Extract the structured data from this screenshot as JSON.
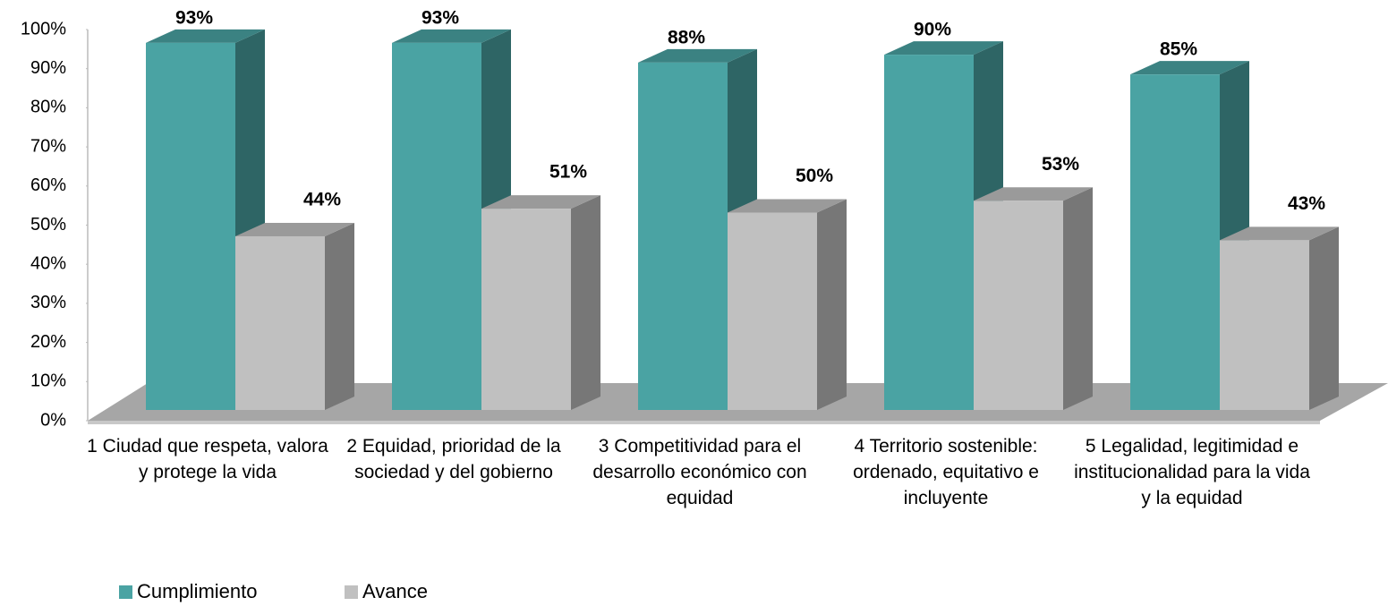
{
  "chart_data": {
    "type": "bar3d",
    "categories": [
      "1 Ciudad que respeta, valora y protege la vida",
      "2 Equidad, prioridad de la sociedad y del gobierno",
      "3 Competitividad para el desarrollo económico con equidad",
      "4 Territorio sostenible: ordenado, equitativo e incluyente",
      "5 Legalidad, legitimidad e institucionalidad para la vida y la equidad"
    ],
    "series": [
      {
        "name": "Cumplimiento",
        "color": "#4aa3a3",
        "values": [
          93,
          93,
          88,
          90,
          85
        ],
        "value_labels": [
          "93%",
          "93%",
          "88%",
          "90%",
          "85%"
        ]
      },
      {
        "name": "Avance",
        "color": "#c0c0c0",
        "values": [
          44,
          51,
          50,
          53,
          43
        ],
        "value_labels": [
          "44%",
          "51%",
          "50%",
          "53%",
          "43%"
        ]
      }
    ],
    "ylim": [
      0,
      100
    ],
    "yticks": [
      {
        "value": 0,
        "label": "0%"
      },
      {
        "value": 10,
        "label": "10%"
      },
      {
        "value": 20,
        "label": "20%"
      },
      {
        "value": 30,
        "label": "30%"
      },
      {
        "value": 40,
        "label": "40%"
      },
      {
        "value": 50,
        "label": "50%"
      },
      {
        "value": 60,
        "label": "60%"
      },
      {
        "value": 70,
        "label": "70%"
      },
      {
        "value": 80,
        "label": "80%"
      },
      {
        "value": 90,
        "label": "90%"
      },
      {
        "value": 100,
        "label": "100%"
      }
    ],
    "legend": "bottom-left"
  }
}
